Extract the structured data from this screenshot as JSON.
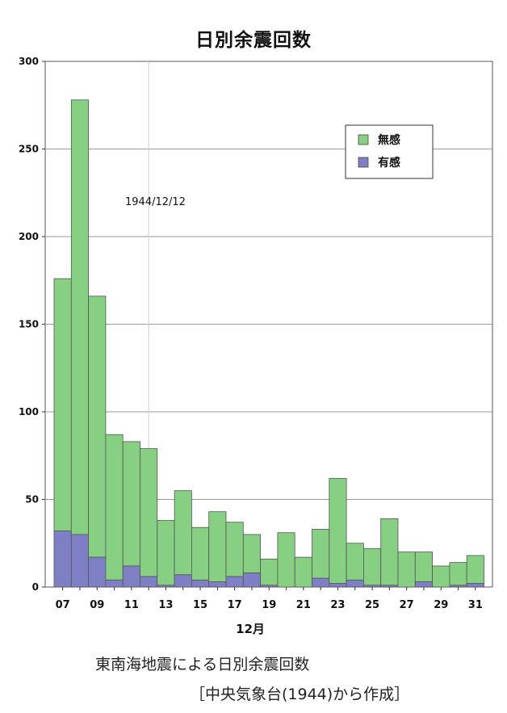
{
  "chart_data": {
    "type": "bar",
    "stacked": true,
    "title": "日別余震回数",
    "xlabel": "12月",
    "ylabel": "",
    "ylim": [
      0,
      300
    ],
    "yticks": [
      0,
      50,
      100,
      150,
      200,
      250,
      300
    ],
    "grid": true,
    "legend_position": "top-right",
    "annotation": "1944/12/12",
    "days": [
      "07",
      "08",
      "09",
      "10",
      "11",
      "12",
      "13",
      "14",
      "15",
      "16",
      "17",
      "18",
      "19",
      "20",
      "21",
      "22",
      "23",
      "24",
      "25",
      "26",
      "27",
      "28",
      "29",
      "30",
      "31"
    ],
    "tick_labels": [
      "07",
      "09",
      "11",
      "13",
      "15",
      "17",
      "19",
      "21",
      "23",
      "25",
      "27",
      "29",
      "31"
    ],
    "series": [
      {
        "name": "有感",
        "color": "#7f7fc6",
        "values": [
          32,
          30,
          17,
          4,
          12,
          6,
          1,
          7,
          4,
          3,
          6,
          8,
          1,
          0,
          0,
          5,
          2,
          4,
          1,
          1,
          0,
          3,
          0,
          1,
          2
        ]
      },
      {
        "name": "無感",
        "color": "#86cf83",
        "values": [
          144,
          248,
          149,
          83,
          71,
          73,
          37,
          48,
          30,
          40,
          31,
          22,
          15,
          31,
          17,
          28,
          60,
          21,
          21,
          38,
          20,
          17,
          12,
          13,
          16
        ]
      }
    ]
  },
  "caption": {
    "line1": "東南海地震による日別余震回数",
    "line2": "［中央気象台(1944)から作成］"
  }
}
